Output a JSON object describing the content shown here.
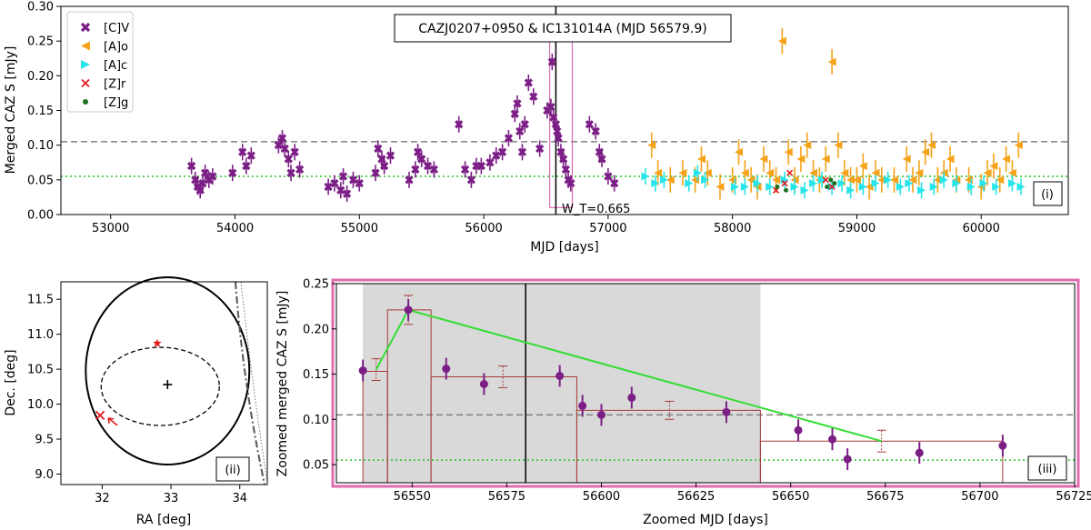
{
  "figure": {
    "panel_labels": [
      "(i)",
      "(ii)",
      "(iii)"
    ],
    "colors": {
      "C_V": "#7b1e86",
      "A_o": "#f5a31a",
      "A_c": "#25e5ea",
      "Z_r": "#e3191d",
      "Z_g": "#1e6f1e",
      "highlight_box": "#e06bb0",
      "threshold_high": "#808080",
      "threshold_low": "#22c422",
      "block_line": "#a83a3a",
      "green_line": "#33dd33"
    }
  },
  "chart_data": [
    {
      "type": "scatter",
      "panel": "(i)",
      "title": "CAZJ0207+0950 & IC131014A (MJD 56579.9)",
      "xlabel": "MJD [days]",
      "ylabel": "Merged CAZ S [mJy]",
      "xlim": [
        52600,
        60700
      ],
      "ylim": [
        0.0,
        0.3
      ],
      "xticks": [
        53000,
        54000,
        55000,
        56000,
        57000,
        58000,
        59000,
        60000
      ],
      "yticks": [
        "0.00",
        "0.05",
        "0.10",
        "0.15",
        "0.20",
        "0.25",
        "0.30"
      ],
      "legend_position": "top-left",
      "legend": [
        "[C]V",
        "[A]o",
        "[A]c",
        "[Z]r",
        "[Z]g"
      ],
      "event_line_x": 56579.9,
      "event_label": "W_T=0.665",
      "threshold_high": 0.105,
      "threshold_low": 0.055,
      "zoom_box": {
        "x": [
          56530,
          56712
        ],
        "y": [
          0.01,
          0.265
        ]
      },
      "series": [
        {
          "name": "[C]V",
          "marker": "X",
          "x": [
            53650,
            53680,
            53700,
            53720,
            53740,
            53760,
            53790,
            53820,
            53980,
            54060,
            54090,
            54130,
            54350,
            54380,
            54400,
            54430,
            54450,
            54480,
            54520,
            54750,
            54800,
            54850,
            54870,
            54900,
            54950,
            55000,
            55130,
            55150,
            55180,
            55200,
            55250,
            55400,
            55450,
            55470,
            55500,
            55550,
            55600,
            55800,
            55850,
            55900,
            55940,
            55980,
            56050,
            56100,
            56150,
            56200,
            56250,
            56270,
            56290,
            56310,
            56330,
            56360,
            56400,
            56450,
            56510,
            56540,
            56550,
            56560,
            56580,
            56590,
            56600,
            56620,
            56640,
            56660,
            56680,
            56700,
            56850,
            56900,
            56930,
            56950,
            57000,
            57050
          ],
          "y": [
            0.07,
            0.05,
            0.04,
            0.035,
            0.045,
            0.06,
            0.05,
            0.055,
            0.06,
            0.09,
            0.07,
            0.085,
            0.1,
            0.11,
            0.095,
            0.08,
            0.06,
            0.09,
            0.065,
            0.04,
            0.045,
            0.035,
            0.055,
            0.03,
            0.05,
            0.045,
            0.06,
            0.095,
            0.08,
            0.07,
            0.085,
            0.05,
            0.065,
            0.09,
            0.08,
            0.07,
            0.065,
            0.13,
            0.065,
            0.05,
            0.07,
            0.07,
            0.075,
            0.085,
            0.09,
            0.11,
            0.145,
            0.16,
            0.12,
            0.09,
            0.13,
            0.19,
            0.17,
            0.095,
            0.15,
            0.155,
            0.22,
            0.14,
            0.13,
            0.12,
            0.11,
            0.09,
            0.08,
            0.065,
            0.05,
            0.045,
            0.13,
            0.12,
            0.09,
            0.08,
            0.055,
            0.045
          ]
        },
        {
          "name": "[A]o",
          "marker": "<",
          "x": [
            57350,
            57400,
            57500,
            57600,
            57700,
            57750,
            57800,
            57900,
            58000,
            58050,
            58100,
            58150,
            58200,
            58250,
            58300,
            58350,
            58400,
            58450,
            58500,
            58550,
            58600,
            58650,
            58700,
            58750,
            58800,
            58850,
            58900,
            58950,
            59000,
            59050,
            59100,
            59150,
            59200,
            59300,
            59400,
            59450,
            59500,
            59550,
            59600,
            59650,
            59700,
            59750,
            59800,
            59900,
            60000,
            60050,
            60100,
            60150,
            60200,
            60250,
            60300
          ],
          "y": [
            0.1,
            0.06,
            0.05,
            0.06,
            0.05,
            0.08,
            0.06,
            0.04,
            0.05,
            0.09,
            0.06,
            0.05,
            0.04,
            0.08,
            0.06,
            0.05,
            0.25,
            0.09,
            0.05,
            0.08,
            0.1,
            0.06,
            0.05,
            0.08,
            0.22,
            0.1,
            0.06,
            0.05,
            0.05,
            0.07,
            0.04,
            0.06,
            0.05,
            0.05,
            0.08,
            0.05,
            0.06,
            0.09,
            0.1,
            0.05,
            0.06,
            0.08,
            0.05,
            0.05,
            0.04,
            0.06,
            0.07,
            0.05,
            0.08,
            0.06,
            0.1
          ]
        },
        {
          "name": "[A]c",
          "marker": ">",
          "x": [
            57300,
            57380,
            57450,
            57650,
            57720,
            57780,
            58020,
            58100,
            58200,
            58300,
            58420,
            58500,
            58580,
            58650,
            58720,
            58800,
            58880,
            58950,
            59050,
            59150,
            59250,
            59350,
            59420,
            59520,
            59620,
            59700,
            59800,
            59920,
            60020,
            60120,
            60250,
            60320
          ],
          "y": [
            0.055,
            0.045,
            0.05,
            0.045,
            0.06,
            0.05,
            0.04,
            0.04,
            0.045,
            0.04,
            0.05,
            0.04,
            0.035,
            0.045,
            0.05,
            0.04,
            0.045,
            0.035,
            0.04,
            0.045,
            0.05,
            0.04,
            0.045,
            0.035,
            0.04,
            0.05,
            0.045,
            0.04,
            0.045,
            0.04,
            0.045,
            0.04
          ]
        },
        {
          "name": "[Z]r",
          "marker": "x",
          "x": [
            58350,
            58420,
            58460,
            58750,
            58800
          ],
          "y": [
            0.035,
            0.045,
            0.06,
            0.05,
            0.04
          ]
        },
        {
          "name": "[Z]g",
          "marker": "o",
          "x": [
            58360,
            58430,
            58760,
            58790,
            58820
          ],
          "y": [
            0.04,
            0.035,
            0.04,
            0.05,
            0.045
          ]
        }
      ]
    },
    {
      "type": "scatter",
      "panel": "(ii)",
      "xlabel": "RA [deg]",
      "ylabel": "Dec. [deg]",
      "xlim": [
        31.4,
        34.4
      ],
      "ylim": [
        8.85,
        11.75
      ],
      "xticks": [
        "32",
        "33",
        "34"
      ],
      "yticks": [
        "9.0",
        "9.5",
        "10.0",
        "10.5",
        "11.0",
        "11.5"
      ],
      "center_marker": {
        "x": 32.95,
        "y": 10.28
      },
      "star_marker": {
        "x": 32.8,
        "y": 10.87
      },
      "x_marker": {
        "x": 31.97,
        "y": 9.84
      }
    },
    {
      "type": "scatter",
      "panel": "(iii)",
      "xlabel": "Zoomed MJD [days]",
      "ylabel": "Zoomed merged CAZ S [mJy]",
      "xlim": [
        56530,
        56725
      ],
      "ylim": [
        0.03,
        0.25
      ],
      "xticks": [
        "56550",
        "56575",
        "56600",
        "56625",
        "56650",
        "56675",
        "56700",
        "56725"
      ],
      "yticks": [
        "0.05",
        "0.10",
        "0.15",
        "0.20",
        "0.25"
      ],
      "event_line_x": 56580,
      "grey_span": [
        56537,
        56642
      ],
      "threshold_high": 0.105,
      "threshold_low": 0.055,
      "points": {
        "x": [
          56537,
          56549,
          56559,
          56569,
          56589,
          56595,
          56600,
          56608,
          56633,
          56652,
          56661,
          56665,
          56684,
          56706
        ],
        "y": [
          0.154,
          0.221,
          0.156,
          0.139,
          0.148,
          0.115,
          0.105,
          0.124,
          0.108,
          0.088,
          0.078,
          0.056,
          0.063,
          0.071
        ]
      },
      "blocks": [
        {
          "x0": 56537,
          "x1": 56543.5,
          "y": 0.153
        },
        {
          "x0": 56543.5,
          "x1": 56555,
          "y": 0.221
        },
        {
          "x0": 56555,
          "x1": 56593.5,
          "y": 0.147
        },
        {
          "x0": 56593.5,
          "x1": 56642,
          "y": 0.11
        },
        {
          "x0": 56642,
          "x1": 56706,
          "y": 0.076
        }
      ],
      "block_means": [
        {
          "x": 56540.5,
          "y": 0.155,
          "err": 0.012
        },
        {
          "x": 56549,
          "y": 0.221,
          "err": 0.016
        },
        {
          "x": 56574,
          "y": 0.147,
          "err": 0.012
        },
        {
          "x": 56618,
          "y": 0.11,
          "err": 0.01
        },
        {
          "x": 56674,
          "y": 0.076,
          "err": 0.012
        }
      ],
      "green_line": {
        "x": [
          56540.5,
          56549,
          56674
        ],
        "y": [
          0.155,
          0.221,
          0.076
        ]
      }
    }
  ]
}
